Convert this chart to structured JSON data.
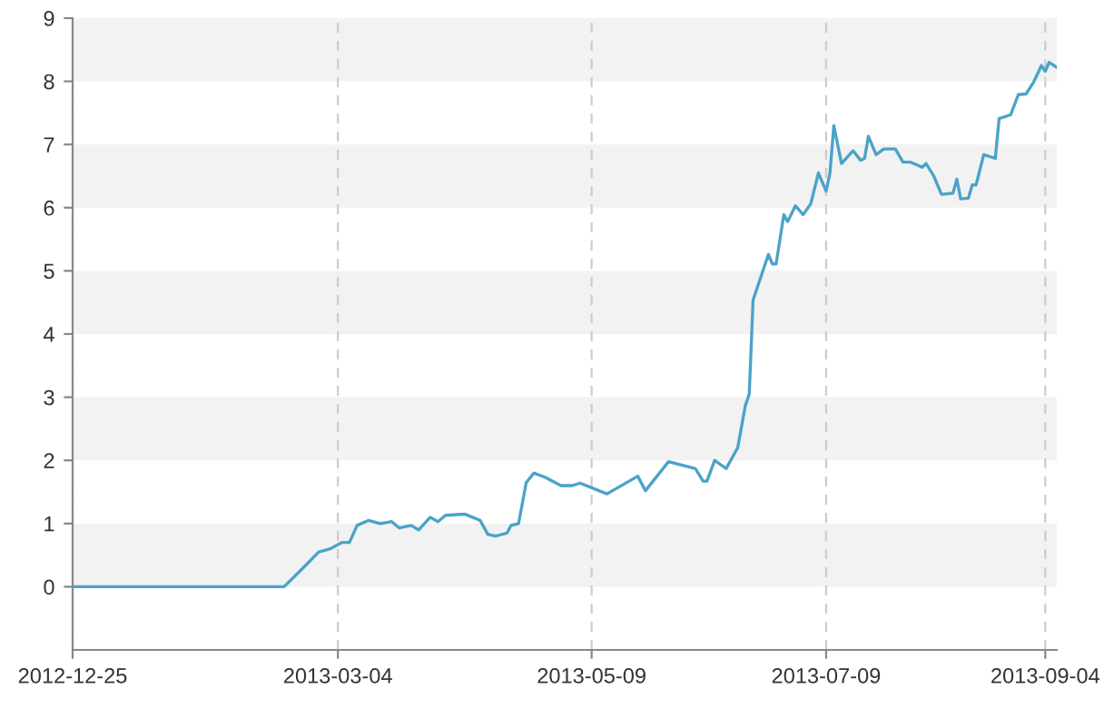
{
  "chart_data": {
    "type": "line",
    "x": [
      "2012-12-25",
      "2013-02-18",
      "2013-02-23",
      "2013-02-27",
      "2013-03-02",
      "2013-03-05",
      "2013-03-07",
      "2013-03-09",
      "2013-03-12",
      "2013-03-15",
      "2013-03-18",
      "2013-03-20",
      "2013-03-23",
      "2013-03-25",
      "2013-03-28",
      "2013-03-30",
      "2013-04-01",
      "2013-04-06",
      "2013-04-08",
      "2013-04-10",
      "2013-04-12",
      "2013-04-14",
      "2013-04-17",
      "2013-04-18",
      "2013-04-20",
      "2013-04-22",
      "2013-04-24",
      "2013-04-27",
      "2013-05-01",
      "2013-05-04",
      "2013-05-06",
      "2013-05-13",
      "2013-05-21",
      "2013-05-23",
      "2013-05-29",
      "2013-06-05",
      "2013-06-07",
      "2013-06-08",
      "2013-06-10",
      "2013-06-13",
      "2013-06-16",
      "2013-06-18",
      "2013-06-19",
      "2013-06-20",
      "2013-06-24",
      "2013-06-25",
      "2013-06-26",
      "2013-06-28",
      "2013-06-29",
      "2013-07-01",
      "2013-07-03",
      "2013-07-05",
      "2013-07-07",
      "2013-07-09",
      "2013-07-10",
      "2013-07-11",
      "2013-07-13",
      "2013-07-16",
      "2013-07-18",
      "2013-07-19",
      "2013-07-20",
      "2013-07-22",
      "2013-07-24",
      "2013-07-27",
      "2013-07-29",
      "2013-07-31",
      "2013-08-03",
      "2013-08-04",
      "2013-08-06",
      "2013-08-08",
      "2013-08-11",
      "2013-08-12",
      "2013-08-13",
      "2013-08-15",
      "2013-08-16",
      "2013-08-17",
      "2013-08-19",
      "2013-08-22",
      "2013-08-23",
      "2013-08-26",
      "2013-08-28",
      "2013-08-30",
      "2013-09-01",
      "2013-09-03",
      "2013-09-04",
      "2013-09-05",
      "2013-09-07"
    ],
    "series": [
      {
        "color": "#4aa3c8",
        "values": [
          0,
          0,
          0.3,
          0.55,
          0.6,
          0.7,
          0.7,
          0.97,
          1.05,
          1.0,
          1.03,
          0.93,
          0.97,
          0.9,
          1.1,
          1.03,
          1.13,
          1.15,
          1.1,
          1.05,
          0.83,
          0.8,
          0.85,
          0.97,
          1.0,
          1.65,
          1.8,
          1.73,
          1.6,
          1.6,
          1.64,
          1.47,
          1.75,
          1.52,
          1.98,
          1.87,
          1.67,
          1.67,
          2.0,
          1.87,
          2.2,
          2.87,
          3.05,
          4.54,
          5.26,
          5.11,
          5.11,
          5.89,
          5.78,
          6.03,
          5.89,
          6.06,
          6.55,
          6.26,
          6.55,
          7.3,
          6.7,
          6.9,
          6.75,
          6.78,
          7.13,
          6.84,
          6.93,
          6.93,
          6.72,
          6.72,
          6.64,
          6.7,
          6.5,
          6.21,
          6.23,
          6.45,
          6.14,
          6.15,
          6.36,
          6.36,
          6.84,
          6.78,
          7.41,
          7.47,
          7.79,
          7.8,
          7.99,
          8.25,
          8.16,
          8.3,
          8.22
        ]
      }
    ],
    "xlim": [
      "2012-12-25",
      "2013-09-07"
    ],
    "xticks": [
      "2012-12-25",
      "2013-03-04",
      "2013-05-09",
      "2013-07-09",
      "2013-09-04"
    ],
    "ylim": [
      -1,
      9
    ],
    "yticks": [
      0,
      1,
      2,
      3,
      4,
      5,
      6,
      7,
      8,
      9
    ],
    "grid": "x",
    "line_style": "solid",
    "marker": "none",
    "bands": [
      {
        "axis": "y",
        "from": 0,
        "to": 1,
        "color": "#f2f2f2"
      },
      {
        "axis": "y",
        "from": 2,
        "to": 3,
        "color": "#f2f2f2"
      },
      {
        "axis": "y",
        "from": 4,
        "to": 5,
        "color": "#f2f2f2"
      },
      {
        "axis": "y",
        "from": 6,
        "to": 7,
        "color": "#f2f2f2"
      },
      {
        "axis": "y",
        "from": 8,
        "to": 9,
        "color": "#f2f2f2"
      }
    ]
  }
}
